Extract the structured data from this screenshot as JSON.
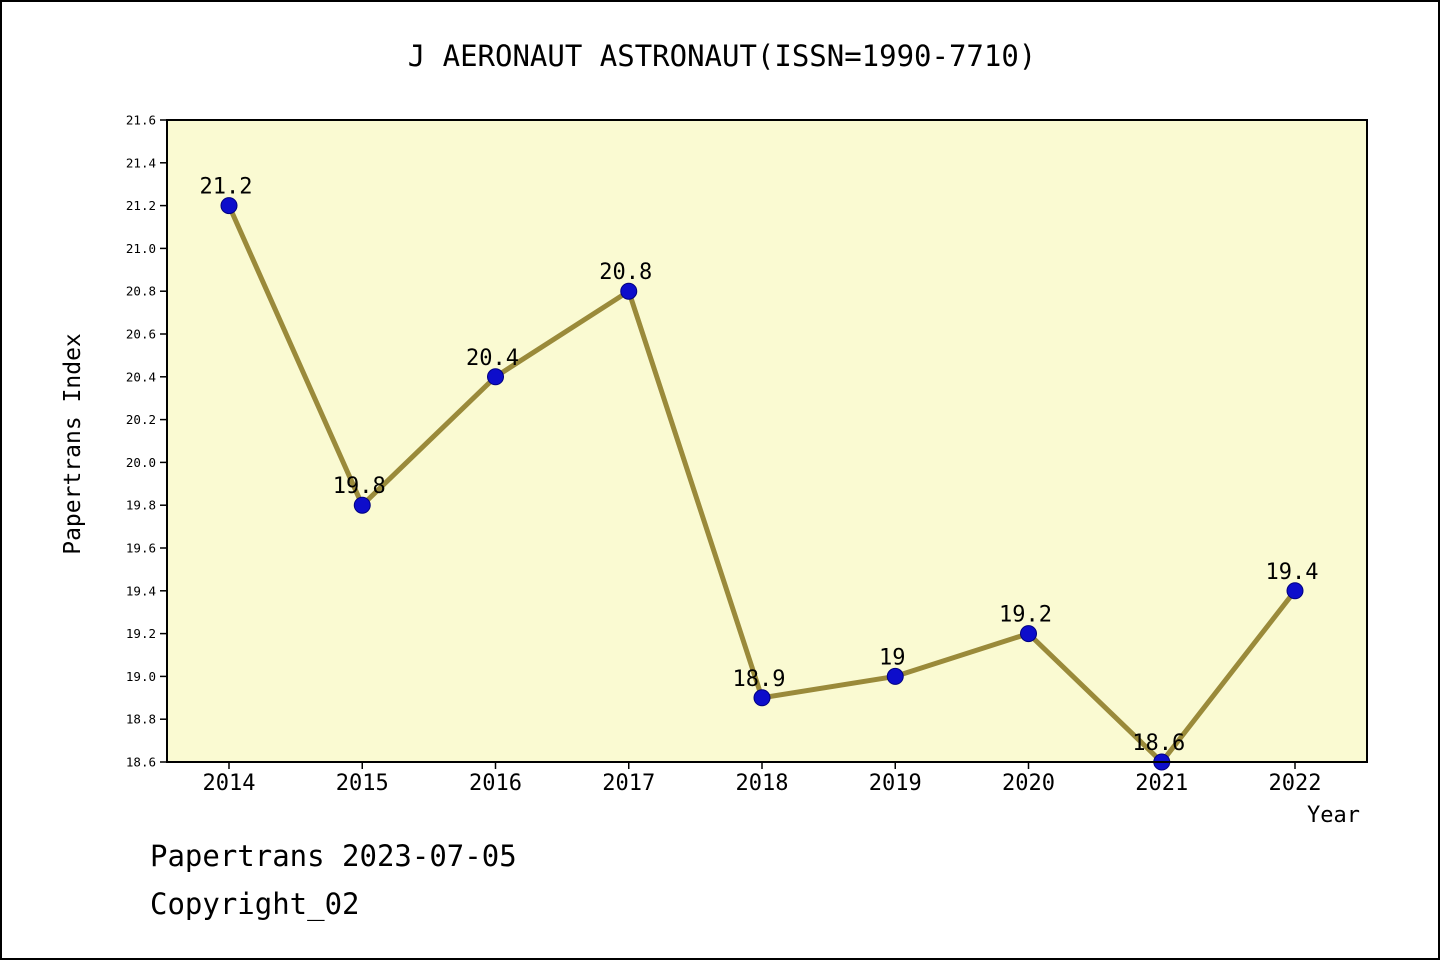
{
  "chart_data": {
    "type": "line",
    "title": "J AERONAUT ASTRONAUT(ISSN=1990-7710)",
    "xlabel": "Year",
    "ylabel": "Papertrans Index",
    "x": [
      2014,
      2015,
      2016,
      2017,
      2018,
      2019,
      2020,
      2021,
      2022
    ],
    "values": [
      21.2,
      19.8,
      20.4,
      20.8,
      18.9,
      19,
      19.2,
      18.6,
      19.4
    ],
    "point_labels": [
      "21.2",
      "19.8",
      "20.4",
      "20.8",
      "18.9",
      "19",
      "19.2",
      "18.6",
      "19.4"
    ],
    "ylim": [
      18.6,
      21.6
    ],
    "ytick_step": 0.2,
    "xlim_note": "ticks at each year 2014-2022",
    "grid": false,
    "legend_position": "none",
    "line_color": "#9A8A3A",
    "marker_color": "#0D0DCB",
    "marker_edge_color": "#000080",
    "plot_bg": "#FAFAD2"
  },
  "footer": {
    "line1": "Papertrans 2023-07-05",
    "line2": "Copyright_02"
  }
}
